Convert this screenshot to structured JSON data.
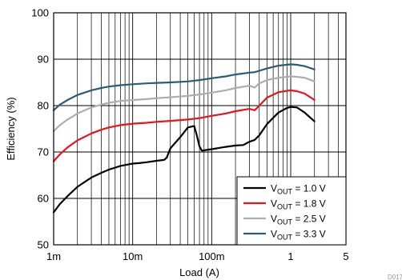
{
  "chart_data": {
    "type": "line",
    "title": "",
    "xlabel": "Load (A)",
    "ylabel": "Efficiency (%)",
    "x_scale": "log",
    "xlim": [
      0.001,
      5
    ],
    "ylim": [
      50,
      100
    ],
    "x_ticks": [
      {
        "value": 0.001,
        "label": "1m"
      },
      {
        "value": 0.01,
        "label": "10m"
      },
      {
        "value": 0.1,
        "label": "100m"
      },
      {
        "value": 1,
        "label": "1"
      },
      {
        "value": 5,
        "label": "5"
      }
    ],
    "y_ticks": [
      50,
      60,
      70,
      80,
      90,
      100
    ],
    "grid": true,
    "legend_position": "bottom-right",
    "figure_id": "D017",
    "series": [
      {
        "name": "VOUT = 1.0 V",
        "legend": {
          "main": "V",
          "sub": "OUT",
          "rest": " = 1.0 V"
        },
        "color": "#000000",
        "x": [
          0.001,
          0.0012,
          0.0015,
          0.002,
          0.003,
          0.004,
          0.005,
          0.007,
          0.01,
          0.012,
          0.015,
          0.02,
          0.025,
          0.027,
          0.03,
          0.04,
          0.05,
          0.06,
          0.065,
          0.07,
          0.075,
          0.1,
          0.15,
          0.2,
          0.25,
          0.27,
          0.3,
          0.35,
          0.4,
          0.5,
          0.7,
          0.9,
          1.0,
          1.2,
          1.5,
          2.0
        ],
        "y": [
          57.0,
          58.8,
          60.5,
          62.5,
          64.5,
          65.5,
          66.2,
          67.0,
          67.5,
          67.6,
          67.8,
          68.1,
          68.3,
          68.8,
          70.8,
          73.2,
          75.3,
          75.6,
          73.5,
          71.2,
          70.3,
          70.6,
          71.1,
          71.4,
          71.5,
          71.8,
          72.2,
          72.6,
          73.6,
          76.0,
          78.5,
          79.5,
          79.7,
          79.6,
          78.5,
          76.6
        ]
      },
      {
        "name": "VOUT = 1.8 V",
        "legend": {
          "main": "V",
          "sub": "OUT",
          "rest": " = 1.8 V"
        },
        "color": "#e8141c",
        "x": [
          0.001,
          0.0012,
          0.0015,
          0.002,
          0.003,
          0.004,
          0.005,
          0.007,
          0.01,
          0.015,
          0.02,
          0.03,
          0.05,
          0.07,
          0.1,
          0.15,
          0.2,
          0.3,
          0.35,
          0.4,
          0.5,
          0.7,
          1.0,
          1.2,
          1.5,
          2.0
        ],
        "y": [
          68.0,
          69.5,
          71.0,
          72.5,
          74.0,
          74.8,
          75.3,
          75.8,
          76.1,
          76.3,
          76.5,
          76.7,
          77.0,
          77.3,
          77.8,
          78.3,
          78.8,
          79.3,
          79.0,
          80.0,
          81.7,
          82.9,
          83.3,
          83.1,
          82.6,
          81.2
        ]
      },
      {
        "name": "VOUT = 2.5 V",
        "legend": {
          "main": "V",
          "sub": "OUT",
          "rest": " = 2.5 V"
        },
        "color": "#adadad",
        "x": [
          0.001,
          0.0012,
          0.0015,
          0.002,
          0.003,
          0.004,
          0.005,
          0.007,
          0.01,
          0.015,
          0.02,
          0.03,
          0.05,
          0.07,
          0.1,
          0.15,
          0.2,
          0.3,
          0.35,
          0.4,
          0.5,
          0.7,
          1.0,
          1.2,
          1.5,
          2.0
        ],
        "y": [
          74.5,
          75.8,
          77.0,
          78.3,
          79.6,
          80.2,
          80.6,
          81.0,
          81.2,
          81.4,
          81.6,
          81.8,
          82.1,
          82.4,
          82.8,
          83.3,
          83.8,
          84.3,
          83.9,
          84.8,
          85.5,
          86.0,
          86.3,
          86.2,
          86.0,
          85.2
        ]
      },
      {
        "name": "VOUT = 3.3 V",
        "legend": {
          "main": "V",
          "sub": "OUT",
          "rest": " = 3.3 V"
        },
        "color": "#2b5a7a",
        "x": [
          0.001,
          0.0012,
          0.0015,
          0.002,
          0.003,
          0.004,
          0.005,
          0.007,
          0.01,
          0.015,
          0.02,
          0.03,
          0.05,
          0.07,
          0.1,
          0.15,
          0.2,
          0.3,
          0.35,
          0.4,
          0.5,
          0.7,
          1.0,
          1.2,
          1.5,
          2.0
        ],
        "y": [
          79.0,
          80.2,
          81.2,
          82.3,
          83.3,
          83.8,
          84.1,
          84.4,
          84.6,
          84.8,
          84.9,
          85.0,
          85.2,
          85.5,
          85.9,
          86.3,
          86.7,
          87.1,
          87.2,
          87.5,
          88.0,
          88.6,
          88.9,
          88.8,
          88.5,
          87.8
        ]
      }
    ]
  }
}
